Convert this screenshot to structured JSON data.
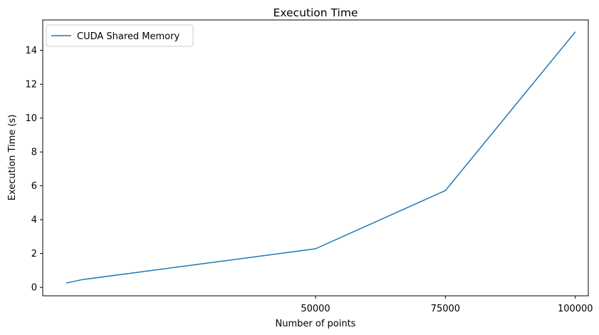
{
  "chart_data": {
    "type": "line",
    "title": "Execution Time",
    "xlabel": "Number of points",
    "ylabel": "Execution Time (s)",
    "xlim": [
      -2500,
      102500
    ],
    "ylim": [
      -0.5,
      15.8
    ],
    "xticks": [
      50000,
      75000,
      100000
    ],
    "xtick_labels": [
      "50000",
      "75000",
      "100000"
    ],
    "yticks": [
      0,
      2,
      4,
      6,
      8,
      10,
      12,
      14
    ],
    "ytick_labels": [
      "0",
      "2",
      "4",
      "6",
      "8",
      "10",
      "12",
      "14"
    ],
    "grid": false,
    "legend_position": "top-left",
    "series": [
      {
        "name": "CUDA Shared Memory",
        "color": "#1f77b4",
        "x": [
          2000,
          5000,
          50000,
          75000,
          100000
        ],
        "y": [
          0.25,
          0.45,
          2.28,
          5.72,
          15.1
        ]
      }
    ]
  }
}
